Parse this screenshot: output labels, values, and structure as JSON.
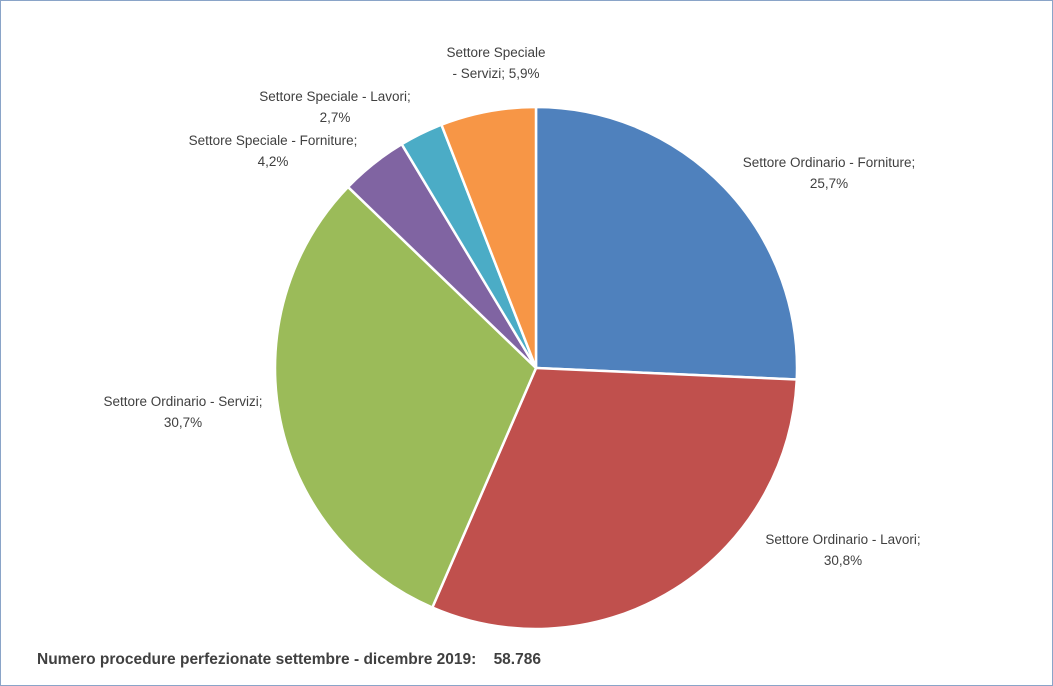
{
  "chart_data": {
    "type": "pie",
    "title": "",
    "slices": [
      {
        "name": "Settore Ordinario - Forniture",
        "value": 25.7,
        "value_label": "25,7%",
        "color": "#4f81bd"
      },
      {
        "name": "Settore Ordinario - Lavori",
        "value": 30.8,
        "value_label": "30,8%",
        "color": "#c0504d"
      },
      {
        "name": "Settore Ordinario - Servizi",
        "value": 30.7,
        "value_label": "30,7%",
        "color": "#9bbb59"
      },
      {
        "name": "Settore Speciale - Forniture",
        "value": 4.2,
        "value_label": "4,2%",
        "color": "#8064a2"
      },
      {
        "name": "Settore Speciale - Lavori",
        "value": 2.7,
        "value_label": "2,7%",
        "color": "#4bacc6"
      },
      {
        "name": "Settore Speciale - Servizi",
        "value": 5.9,
        "value_label": "5,9%",
        "color": "#f79646"
      }
    ],
    "start_angle_deg": 0,
    "direction": "clockwise",
    "legend": "none",
    "data_labels": "outside"
  },
  "footer": {
    "note_label": "Numero procedure perfezionate settembre - dicembre 2019:",
    "note_value": "58.786"
  }
}
